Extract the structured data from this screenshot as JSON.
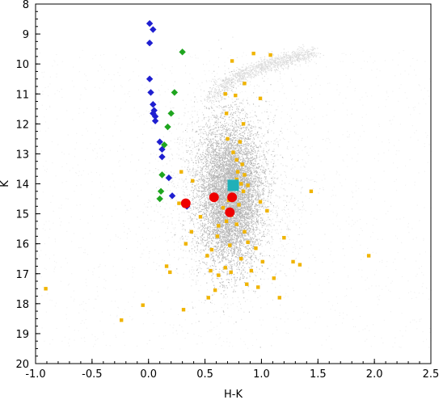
{
  "chart_data": {
    "type": "scatter",
    "title": "",
    "xlabel": "H-K",
    "ylabel": "K",
    "xlim": [
      -1.0,
      2.5
    ],
    "ylim": [
      20,
      8
    ],
    "y_inverted": true,
    "grid": false,
    "legend": "none",
    "x_ticks": [
      "-1.0",
      "-0.5",
      "0.0",
      "0.5",
      "1.0",
      "1.5",
      "2.0",
      "2.5"
    ],
    "y_ticks": [
      "8",
      "9",
      "10",
      "11",
      "12",
      "13",
      "14",
      "15",
      "16",
      "17",
      "18",
      "19",
      "20"
    ],
    "background_density": {
      "color": "#808080",
      "description_points": "dense grey cloud of field stars",
      "core_center": [
        0.72,
        14.3
      ],
      "core_spread": [
        0.14,
        1.2
      ],
      "halo_spread": [
        0.55,
        2.8
      ],
      "giant_branch_from": [
        0.55,
        11.3
      ],
      "giant_branch_to": [
        1.45,
        9.6
      ]
    },
    "series": [
      {
        "color": "#1f1fd0",
        "marker": "diamond",
        "points": [
          [
            0.01,
            8.65
          ],
          [
            0.04,
            8.85
          ],
          [
            0.01,
            9.3
          ],
          [
            0.01,
            10.5
          ],
          [
            0.02,
            10.95
          ],
          [
            0.04,
            11.35
          ],
          [
            0.05,
            11.55
          ],
          [
            0.04,
            11.65
          ],
          [
            0.06,
            11.75
          ],
          [
            0.06,
            11.9
          ],
          [
            0.1,
            12.6
          ],
          [
            0.12,
            12.85
          ],
          [
            0.12,
            13.1
          ],
          [
            0.18,
            13.8
          ],
          [
            0.21,
            14.4
          ],
          [
            0.34,
            14.75
          ]
        ]
      },
      {
        "color": "#1fa51f",
        "marker": "diamond",
        "points": [
          [
            0.3,
            9.6
          ],
          [
            0.23,
            10.95
          ],
          [
            0.2,
            11.65
          ],
          [
            0.17,
            12.1
          ],
          [
            0.14,
            12.7
          ],
          [
            0.12,
            13.7
          ],
          [
            0.11,
            14.25
          ],
          [
            0.1,
            14.5
          ]
        ]
      },
      {
        "color": "#f0b400",
        "marker": "square",
        "points": [
          [
            0.74,
            9.9
          ],
          [
            0.93,
            9.65
          ],
          [
            1.08,
            9.7
          ],
          [
            0.85,
            10.65
          ],
          [
            0.68,
            11.0
          ],
          [
            0.77,
            11.05
          ],
          [
            0.99,
            11.15
          ],
          [
            0.69,
            11.65
          ],
          [
            0.84,
            12.0
          ],
          [
            0.7,
            12.5
          ],
          [
            0.75,
            12.95
          ],
          [
            0.81,
            12.6
          ],
          [
            0.78,
            13.2
          ],
          [
            0.83,
            13.35
          ],
          [
            0.79,
            13.6
          ],
          [
            0.85,
            13.7
          ],
          [
            0.78,
            13.85
          ],
          [
            0.82,
            14.0
          ],
          [
            0.88,
            14.05
          ],
          [
            0.84,
            14.25
          ],
          [
            0.76,
            14.45
          ],
          [
            0.8,
            14.7
          ],
          [
            0.71,
            14.55
          ],
          [
            0.66,
            14.8
          ],
          [
            0.73,
            15.05
          ],
          [
            0.78,
            15.35
          ],
          [
            0.62,
            15.4
          ],
          [
            0.69,
            15.25
          ],
          [
            0.85,
            15.6
          ],
          [
            0.61,
            15.75
          ],
          [
            0.88,
            15.95
          ],
          [
            0.72,
            16.05
          ],
          [
            0.56,
            16.2
          ],
          [
            0.95,
            16.15
          ],
          [
            0.82,
            16.5
          ],
          [
            1.01,
            16.6
          ],
          [
            0.68,
            16.8
          ],
          [
            0.91,
            16.9
          ],
          [
            0.73,
            16.95
          ],
          [
            0.62,
            17.05
          ],
          [
            1.11,
            17.15
          ],
          [
            0.87,
            17.35
          ],
          [
            0.59,
            17.55
          ],
          [
            0.97,
            17.45
          ],
          [
            1.16,
            17.8
          ],
          [
            1.2,
            15.8
          ],
          [
            1.05,
            14.9
          ],
          [
            0.99,
            14.6
          ],
          [
            1.28,
            16.6
          ],
          [
            1.34,
            16.7
          ],
          [
            0.55,
            16.9
          ],
          [
            0.52,
            16.4
          ],
          [
            0.46,
            15.1
          ],
          [
            0.38,
            15.6
          ],
          [
            0.33,
            16.0
          ],
          [
            0.29,
            13.6
          ],
          [
            0.39,
            13.9
          ],
          [
            0.16,
            16.75
          ],
          [
            0.19,
            16.95
          ],
          [
            0.27,
            14.65
          ],
          [
            0.31,
            18.2
          ],
          [
            0.53,
            17.8
          ],
          [
            -0.05,
            18.05
          ],
          [
            -0.24,
            18.55
          ],
          [
            -0.91,
            17.5
          ],
          [
            1.44,
            14.25
          ],
          [
            1.95,
            16.4
          ]
        ]
      },
      {
        "color": "#ee0000",
        "marker": "circle",
        "points": [
          [
            0.33,
            14.65
          ],
          [
            0.58,
            14.45
          ],
          [
            0.74,
            14.45
          ],
          [
            0.72,
            14.95
          ]
        ]
      },
      {
        "color": "#20b0b8",
        "marker": "square-large",
        "points": [
          [
            0.75,
            14.05
          ]
        ]
      }
    ]
  }
}
